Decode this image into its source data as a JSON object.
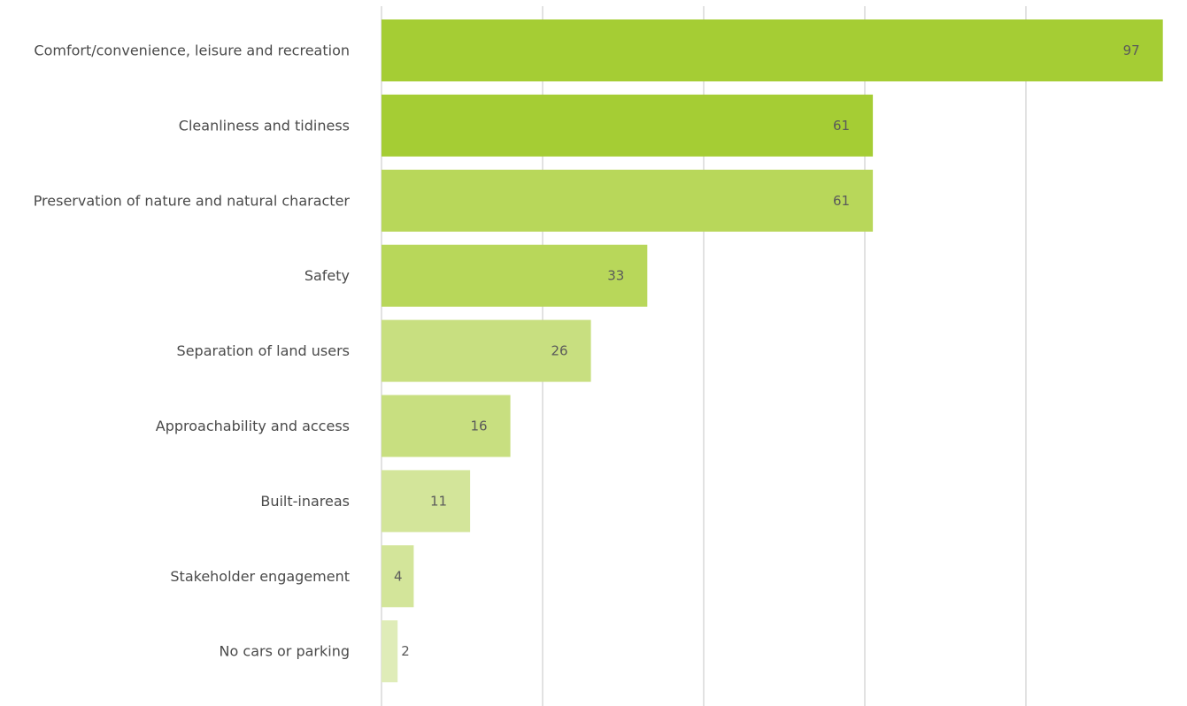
{
  "chart_data": {
    "type": "bar",
    "orientation": "horizontal",
    "categories": [
      "Comfort/convenience, leisure and recreation",
      "Cleanliness and tidiness",
      "Preservation of nature and natural character",
      "Safety",
      "Separation of land users",
      "Approachability and access",
      "Built-inareas",
      "Stakeholder engagement",
      "No cars or parking"
    ],
    "values": [
      97,
      61,
      61,
      33,
      26,
      16,
      11,
      4,
      2
    ],
    "colors": [
      "#a5cd34",
      "#a5cd34",
      "#b8d75a",
      "#b8d75a",
      "#c8df80",
      "#c8df80",
      "#d3e59a",
      "#d3e59a",
      "#dfecb8"
    ],
    "xlim": [
      0,
      100
    ],
    "grid": true,
    "data_labels": true,
    "title": "",
    "xlabel": "",
    "ylabel": ""
  }
}
